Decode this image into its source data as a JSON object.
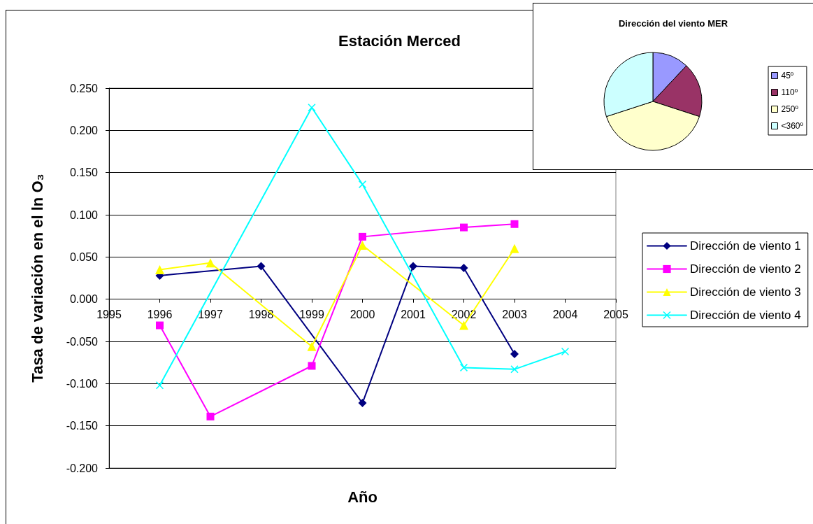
{
  "chart_data": [
    {
      "type": "line",
      "title": "Estación Merced",
      "xlabel": "Año",
      "ylabel": "Tasa de variación en el ln O₃",
      "xlim": [
        1995,
        2005
      ],
      "xticks": [
        1995,
        1996,
        1997,
        1998,
        1999,
        2000,
        2001,
        2002,
        2003,
        2004,
        2005
      ],
      "ylim": [
        -0.2,
        0.25
      ],
      "yticks": [
        {
          "value": -0.2,
          "label": "-0.200"
        },
        {
          "value": -0.15,
          "label": "-0.150"
        },
        {
          "value": -0.1,
          "label": "-0.100"
        },
        {
          "value": -0.05,
          "label": "-0.050"
        },
        {
          "value": 0,
          "label": "0.000"
        },
        {
          "value": 0.05,
          "label": "0.050"
        },
        {
          "value": 0.1,
          "label": "0.100"
        },
        {
          "value": 0.15,
          "label": "0.150"
        },
        {
          "value": 0.2,
          "label": "0.200"
        },
        {
          "value": 0.25,
          "label": "0.250"
        }
      ],
      "grid": "y",
      "legend": "right",
      "line_style": "solid",
      "series": [
        {
          "name": "Dirección de viento 1",
          "color": "#000080",
          "marker": "diamond",
          "x": [
            1996,
            1998,
            2000,
            2001,
            2002,
            2003
          ],
          "values": [
            0.028,
            0.039,
            -0.123,
            0.039,
            0.037,
            -0.065
          ]
        },
        {
          "name": "Dirección de viento 2",
          "color": "#ff00ff",
          "marker": "square",
          "x": [
            1996,
            1997,
            1999,
            2000,
            2002,
            2003
          ],
          "values": [
            -0.031,
            -0.139,
            -0.079,
            0.074,
            0.085,
            0.089
          ]
        },
        {
          "name": "Dirección de viento 3",
          "color": "#ffff00",
          "marker": "triangle",
          "x": [
            1996,
            1997,
            1999,
            2000,
            2002,
            2003
          ],
          "values": [
            0.035,
            0.043,
            -0.056,
            0.064,
            -0.031,
            0.06
          ]
        },
        {
          "name": "Dirección de viento 4",
          "color": "#00ffff",
          "marker": "cross",
          "x": [
            1996,
            1999,
            2000,
            2002,
            2003,
            2004
          ],
          "values": [
            -0.102,
            0.227,
            0.136,
            -0.081,
            -0.083,
            -0.062
          ]
        }
      ]
    },
    {
      "type": "pie",
      "title": "Dirección del viento MER",
      "categories": [
        "45º",
        "110º",
        "250º",
        "<360º"
      ],
      "values": [
        12,
        18,
        40,
        30
      ],
      "colors": [
        "#9999ff",
        "#993366",
        "#ffffcc",
        "#ccffff"
      ],
      "legend": "right"
    }
  ]
}
